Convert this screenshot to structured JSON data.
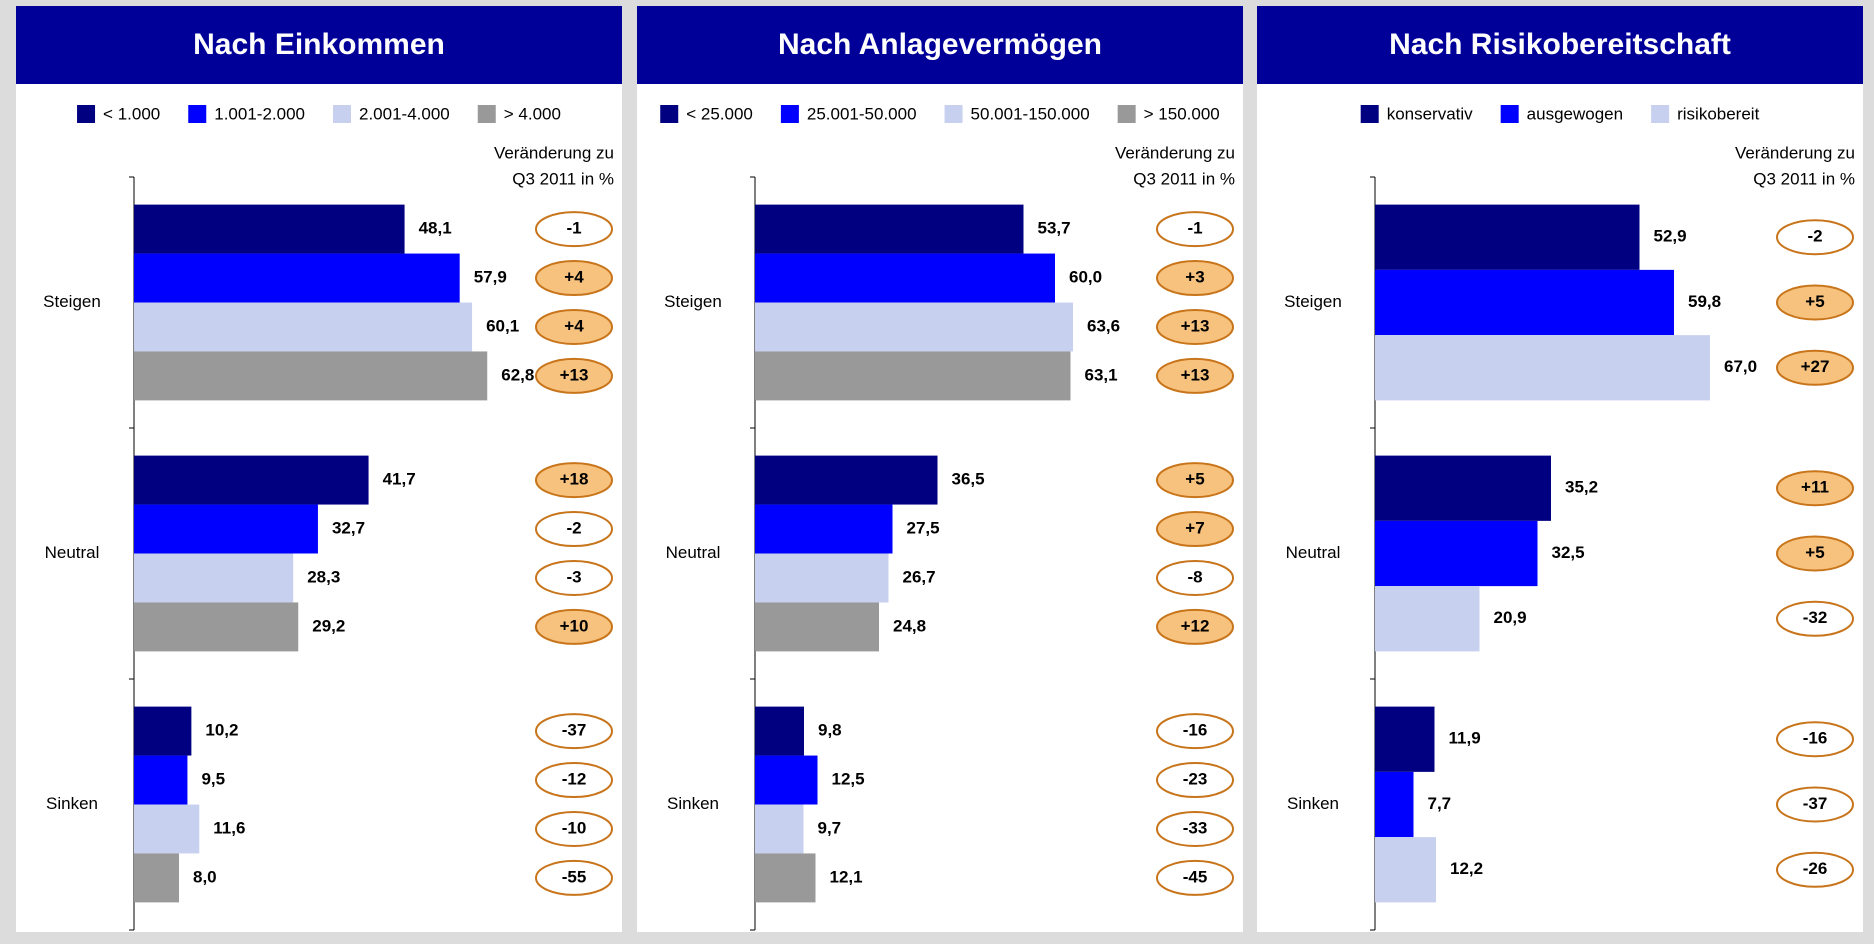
{
  "charts": [
    {
      "type": "bar",
      "title": "Nach Einkommen",
      "annotation": [
        "Veränderung zu",
        "Q3 2011 in %"
      ],
      "categories": [
        "Steigen",
        "Neutral",
        "Sinken"
      ],
      "xlim": [
        0,
        80
      ],
      "series": [
        {
          "name": "< 1.000",
          "color": "#000080",
          "values": [
            48.1,
            41.7,
            10.2
          ],
          "value_labels": [
            "48,1",
            "41,7",
            "10,2"
          ],
          "changes": [
            -1,
            18,
            -37
          ],
          "change_labels": [
            "-1",
            "+18",
            "-37"
          ]
        },
        {
          "name": "1.001-2.000",
          "color": "#0000ff",
          "values": [
            57.9,
            32.7,
            9.5
          ],
          "value_labels": [
            "57,9",
            "32,7",
            "9,5"
          ],
          "changes": [
            4,
            -2,
            -12
          ],
          "change_labels": [
            "+4",
            "-2",
            "-12"
          ]
        },
        {
          "name": "2.001-4.000",
          "color": "#c8d0f0",
          "values": [
            60.1,
            28.3,
            11.6
          ],
          "value_labels": [
            "60,1",
            "28,3",
            "11,6"
          ],
          "changes": [
            4,
            -3,
            -10
          ],
          "change_labels": [
            "+4",
            "-3",
            "-10"
          ]
        },
        {
          "name": "> 4.000",
          "color": "#999999",
          "values": [
            62.8,
            29.2,
            8.0
          ],
          "value_labels": [
            "62,8",
            "29,2",
            "8,0"
          ],
          "changes": [
            13,
            10,
            -55
          ],
          "change_labels": [
            "+13",
            "+10",
            "-55"
          ]
        }
      ]
    },
    {
      "type": "bar",
      "title": "Nach Anlagevermögen",
      "annotation": [
        "Veränderung zu",
        "Q3 2011 in %"
      ],
      "categories": [
        "Steigen",
        "Neutral",
        "Sinken"
      ],
      "xlim": [
        0,
        90
      ],
      "series": [
        {
          "name": "< 25.000",
          "color": "#000080",
          "values": [
            53.7,
            36.5,
            9.8
          ],
          "value_labels": [
            "53,7",
            "36,5",
            "9,8"
          ],
          "changes": [
            -1,
            5,
            -16
          ],
          "change_labels": [
            "-1",
            "+5",
            "-16"
          ]
        },
        {
          "name": "25.001-50.000",
          "color": "#0000ff",
          "values": [
            60.0,
            27.5,
            12.5
          ],
          "value_labels": [
            "60,0",
            "27,5",
            "12,5"
          ],
          "changes": [
            3,
            7,
            -23
          ],
          "change_labels": [
            "+3",
            "+7",
            "-23"
          ]
        },
        {
          "name": "50.001-150.000",
          "color": "#c8d0f0",
          "values": [
            63.6,
            26.7,
            9.7
          ],
          "value_labels": [
            "63,6",
            "26,7",
            "9,7"
          ],
          "changes": [
            13,
            -8,
            -33
          ],
          "change_labels": [
            "+13",
            "-8",
            "-33"
          ]
        },
        {
          "name": "> 150.000",
          "color": "#999999",
          "values": [
            63.1,
            24.8,
            12.1
          ],
          "value_labels": [
            "63,1",
            "24,8",
            "12,1"
          ],
          "changes": [
            13,
            12,
            -45
          ],
          "change_labels": [
            "+13",
            "+12",
            "-45"
          ]
        }
      ]
    },
    {
      "type": "bar",
      "title": "Nach Risikobereitschaft",
      "annotation": [
        "Veränderung zu",
        "Q3 2011 in %"
      ],
      "categories": [
        "Steigen",
        "Neutral",
        "Sinken"
      ],
      "xlim": [
        0,
        90
      ],
      "series": [
        {
          "name": "konservativ",
          "color": "#000080",
          "values": [
            52.9,
            35.2,
            11.9
          ],
          "value_labels": [
            "52,9",
            "35,2",
            "11,9"
          ],
          "changes": [
            -2,
            11,
            -16
          ],
          "change_labels": [
            "-2",
            "+11",
            "-16"
          ]
        },
        {
          "name": "ausgewogen",
          "color": "#0000ff",
          "values": [
            59.8,
            32.5,
            7.7
          ],
          "value_labels": [
            "59,8",
            "32,5",
            "7,7"
          ],
          "changes": [
            5,
            5,
            -37
          ],
          "change_labels": [
            "+5",
            "+5",
            "-37"
          ]
        },
        {
          "name": "risikobereit",
          "color": "#c8d0f0",
          "values": [
            67.0,
            20.9,
            12.2
          ],
          "value_labels": [
            "67,0",
            "20,9",
            "12,2"
          ],
          "changes": [
            27,
            -32,
            -26
          ],
          "change_labels": [
            "+27",
            "-32",
            "-26"
          ]
        }
      ]
    }
  ]
}
